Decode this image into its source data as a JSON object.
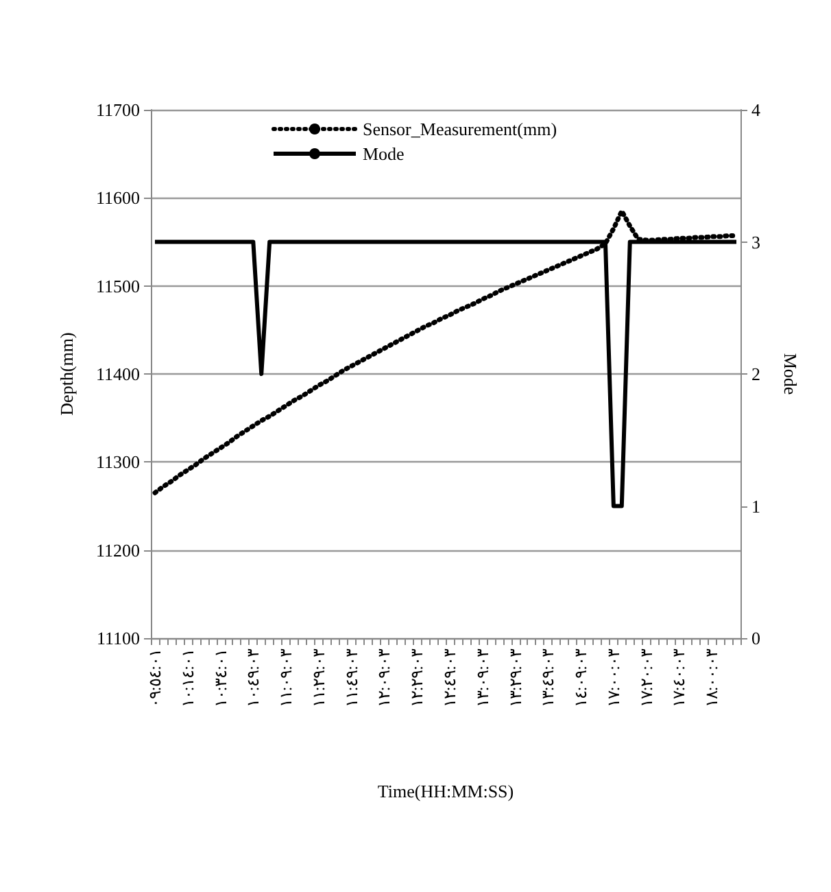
{
  "chart_data": {
    "type": "line",
    "xlabel": "Time(HH:MM:SS)",
    "ylabel": "Depth(mm)",
    "y2label": "Mode",
    "categories": [
      "٠٩:٥٤:٠١",
      null,
      null,
      null,
      "١٠:١٤:٠١",
      null,
      null,
      null,
      "١٠:٣٤:٠١",
      null,
      null,
      null,
      "١٠:٤٩:٠٣",
      null,
      null,
      null,
      "١١:٠٩:٠٣",
      null,
      null,
      null,
      "١١:٢٩:٠٣",
      null,
      null,
      null,
      "١١:٤٩:٠٣",
      null,
      null,
      null,
      "١٢:٠٩:٠٣",
      null,
      null,
      null,
      "١٢:٢٩:٠٣",
      null,
      null,
      null,
      "١٢:٤٩:٠٣",
      null,
      null,
      null,
      "١٣:٠٩:٠٣",
      null,
      null,
      null,
      "١٣:٢٩:٠٣",
      null,
      null,
      null,
      "١٣:٤٩:٠٣",
      null,
      null,
      null,
      "١٤:٠٩:٠٣",
      null,
      null,
      null,
      "١٧:٠٠:٠٣",
      null,
      null,
      null,
      "١٧:٢٠:٠٣",
      null,
      null,
      null,
      "١٧:٤٠:٠٣",
      null,
      null,
      null,
      "١٨:٠٠:٠٣",
      null,
      null,
      null
    ],
    "series": [
      {
        "name": "Sensor_Measurement(mm)",
        "color": "#000000",
        "line_style": "dotted",
        "values": [
          11265,
          11272,
          11278,
          11285,
          11291,
          11297,
          11304,
          11310,
          11316,
          11322,
          11329,
          11335,
          11341,
          11347,
          11352,
          11358,
          11364,
          11370,
          11375,
          11381,
          11387,
          11392,
          11398,
          11404,
          11409,
          11414,
          11419,
          11424,
          11429,
          11434,
          11439,
          11444,
          11449,
          11454,
          11458,
          11463,
          11467,
          11472,
          11476,
          11480,
          11485,
          11489,
          11494,
          11498,
          11502,
          11506,
          11510,
          11514,
          11518,
          11522,
          11526,
          11530,
          11534,
          11538,
          11542,
          11548,
          11565,
          11585,
          11568,
          11553,
          11552,
          11552,
          11553,
          11553,
          11554,
          11554,
          11555,
          11555,
          11556,
          11556,
          11557,
          11557
        ]
      },
      {
        "name": "Mode",
        "color": "#000000",
        "line_style": "solid",
        "axis": "y2",
        "values": [
          3,
          3,
          3,
          3,
          3,
          3,
          3,
          3,
          3,
          3,
          3,
          3,
          3,
          2,
          3,
          3,
          3,
          3,
          3,
          3,
          3,
          3,
          3,
          3,
          3,
          3,
          3,
          3,
          3,
          3,
          3,
          3,
          3,
          3,
          3,
          3,
          3,
          3,
          3,
          3,
          3,
          3,
          3,
          3,
          3,
          3,
          3,
          3,
          3,
          3,
          3,
          3,
          3,
          3,
          3,
          3,
          1,
          1,
          3,
          3,
          3,
          3,
          3,
          3,
          3,
          3,
          3,
          3,
          3,
          3,
          3,
          3
        ]
      }
    ],
    "ylim": [
      11100,
      11700
    ],
    "yticks": [
      11100,
      11200,
      11300,
      11400,
      11500,
      11600,
      11700
    ],
    "y2lim": [
      0,
      4
    ],
    "y2ticks": [
      0,
      1,
      2,
      3,
      4
    ],
    "grid": "y",
    "legend": "top",
    "marker": "none"
  }
}
